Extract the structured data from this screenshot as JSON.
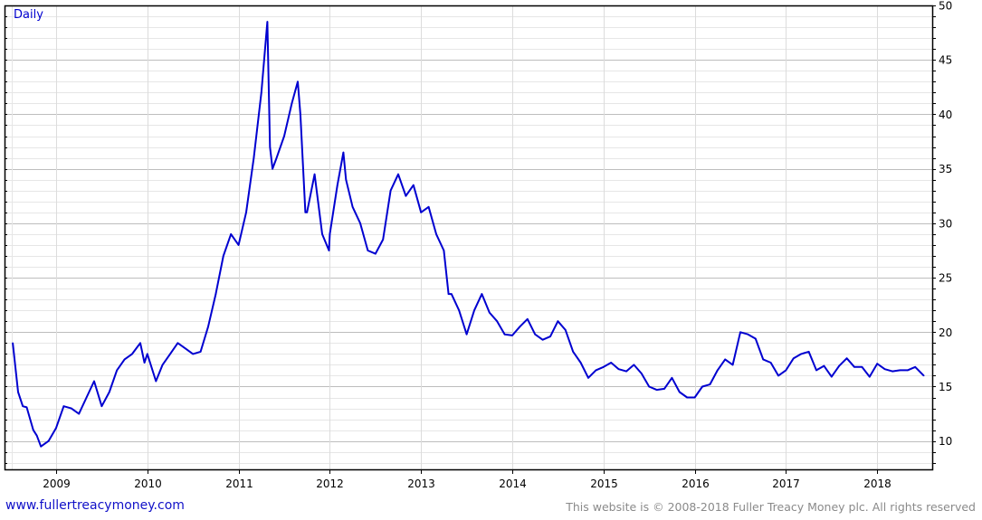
{
  "chart_data": {
    "type": "line",
    "title": "Daily",
    "xlabel": "",
    "ylabel": "",
    "ylim": [
      7.4,
      50
    ],
    "yticks": [
      10,
      15,
      20,
      25,
      30,
      35,
      40,
      45,
      50
    ],
    "xticks": [
      "2009",
      "2010",
      "2011",
      "2012",
      "2013",
      "2014",
      "2015",
      "2016",
      "2017",
      "2018"
    ],
    "grid": true,
    "y_axis_side": "right",
    "colors": {
      "series": "#0000d0",
      "title": "#0000d0",
      "major_grid": "#bdbdbd",
      "minor_grid": "#e6e6e6"
    },
    "series": [
      {
        "points": [
          [
            "2008-07-10",
            19.0
          ],
          [
            "2008-08-01",
            14.5
          ],
          [
            "2008-08-20",
            13.2
          ],
          [
            "2008-09-05",
            13.1
          ],
          [
            "2008-10-01",
            11.0
          ],
          [
            "2008-10-15",
            10.5
          ],
          [
            "2008-11-01",
            9.5
          ],
          [
            "2008-12-01",
            10.0
          ],
          [
            "2009-01-01",
            11.2
          ],
          [
            "2009-02-01",
            13.2
          ],
          [
            "2009-03-01",
            13.0
          ],
          [
            "2009-04-01",
            12.5
          ],
          [
            "2009-05-01",
            14.0
          ],
          [
            "2009-06-01",
            15.5
          ],
          [
            "2009-07-01",
            13.2
          ],
          [
            "2009-08-01",
            14.5
          ],
          [
            "2009-09-01",
            16.5
          ],
          [
            "2009-10-01",
            17.5
          ],
          [
            "2009-11-01",
            18.0
          ],
          [
            "2009-12-03",
            19.0
          ],
          [
            "2009-12-20",
            17.2
          ],
          [
            "2010-01-01",
            18.0
          ],
          [
            "2010-02-05",
            15.5
          ],
          [
            "2010-03-01",
            17.0
          ],
          [
            "2010-04-01",
            18.0
          ],
          [
            "2010-05-01",
            19.0
          ],
          [
            "2010-06-01",
            18.5
          ],
          [
            "2010-07-01",
            18.0
          ],
          [
            "2010-08-01",
            18.2
          ],
          [
            "2010-09-01",
            20.5
          ],
          [
            "2010-10-01",
            23.5
          ],
          [
            "2010-11-01",
            27.0
          ],
          [
            "2010-12-01",
            29.0
          ],
          [
            "2011-01-01",
            28.0
          ],
          [
            "2011-02-01",
            31.0
          ],
          [
            "2011-03-01",
            36.0
          ],
          [
            "2011-04-01",
            42.0
          ],
          [
            "2011-04-25",
            48.5
          ],
          [
            "2011-05-05",
            37.0
          ],
          [
            "2011-05-15",
            35.0
          ],
          [
            "2011-06-01",
            36.0
          ],
          [
            "2011-07-01",
            38.0
          ],
          [
            "2011-08-01",
            41.0
          ],
          [
            "2011-08-25",
            43.0
          ],
          [
            "2011-09-05",
            40.0
          ],
          [
            "2011-09-25",
            31.0
          ],
          [
            "2011-10-01",
            31.0
          ],
          [
            "2011-11-01",
            34.5
          ],
          [
            "2011-12-01",
            29.0
          ],
          [
            "2011-12-28",
            27.5
          ],
          [
            "2012-01-01",
            29.0
          ],
          [
            "2012-02-01",
            33.5
          ],
          [
            "2012-02-25",
            36.5
          ],
          [
            "2012-03-05",
            34.0
          ],
          [
            "2012-04-01",
            31.5
          ],
          [
            "2012-05-01",
            30.0
          ],
          [
            "2012-06-01",
            27.5
          ],
          [
            "2012-07-01",
            27.2
          ],
          [
            "2012-08-01",
            28.5
          ],
          [
            "2012-09-01",
            33.0
          ],
          [
            "2012-10-01",
            34.5
          ],
          [
            "2012-11-01",
            32.5
          ],
          [
            "2012-12-01",
            33.5
          ],
          [
            "2013-01-01",
            31.0
          ],
          [
            "2013-02-01",
            31.5
          ],
          [
            "2013-03-01",
            29.0
          ],
          [
            "2013-04-01",
            27.5
          ],
          [
            "2013-04-20",
            23.5
          ],
          [
            "2013-05-01",
            23.5
          ],
          [
            "2013-06-01",
            22.0
          ],
          [
            "2013-07-01",
            19.8
          ],
          [
            "2013-08-01",
            22.0
          ],
          [
            "2013-09-01",
            23.5
          ],
          [
            "2013-10-01",
            21.8
          ],
          [
            "2013-11-01",
            21.0
          ],
          [
            "2013-12-01",
            19.8
          ],
          [
            "2014-01-01",
            19.7
          ],
          [
            "2014-02-01",
            20.5
          ],
          [
            "2014-03-01",
            21.2
          ],
          [
            "2014-04-01",
            19.8
          ],
          [
            "2014-05-01",
            19.3
          ],
          [
            "2014-06-01",
            19.6
          ],
          [
            "2014-07-01",
            21.0
          ],
          [
            "2014-08-01",
            20.2
          ],
          [
            "2014-09-01",
            18.2
          ],
          [
            "2014-10-01",
            17.2
          ],
          [
            "2014-11-01",
            15.8
          ],
          [
            "2014-12-01",
            16.5
          ],
          [
            "2015-01-01",
            16.8
          ],
          [
            "2015-02-01",
            17.2
          ],
          [
            "2015-03-01",
            16.6
          ],
          [
            "2015-04-01",
            16.4
          ],
          [
            "2015-05-01",
            17.0
          ],
          [
            "2015-06-01",
            16.2
          ],
          [
            "2015-07-01",
            15.0
          ],
          [
            "2015-08-01",
            14.7
          ],
          [
            "2015-09-01",
            14.8
          ],
          [
            "2015-10-01",
            15.8
          ],
          [
            "2015-11-01",
            14.5
          ],
          [
            "2015-12-01",
            14.0
          ],
          [
            "2016-01-01",
            14.0
          ],
          [
            "2016-02-01",
            15.0
          ],
          [
            "2016-03-01",
            15.2
          ],
          [
            "2016-04-01",
            16.5
          ],
          [
            "2016-05-01",
            17.5
          ],
          [
            "2016-06-01",
            17.0
          ],
          [
            "2016-07-01",
            20.0
          ],
          [
            "2016-08-01",
            19.8
          ],
          [
            "2016-09-01",
            19.4
          ],
          [
            "2016-10-01",
            17.5
          ],
          [
            "2016-11-01",
            17.2
          ],
          [
            "2016-12-01",
            16.0
          ],
          [
            "2017-01-01",
            16.5
          ],
          [
            "2017-02-01",
            17.6
          ],
          [
            "2017-03-01",
            18.0
          ],
          [
            "2017-04-01",
            18.2
          ],
          [
            "2017-05-01",
            16.5
          ],
          [
            "2017-06-01",
            16.9
          ],
          [
            "2017-07-01",
            15.9
          ],
          [
            "2017-08-01",
            16.9
          ],
          [
            "2017-09-01",
            17.6
          ],
          [
            "2017-10-01",
            16.8
          ],
          [
            "2017-11-01",
            16.8
          ],
          [
            "2017-12-01",
            15.9
          ],
          [
            "2018-01-01",
            17.1
          ],
          [
            "2018-02-01",
            16.6
          ],
          [
            "2018-03-01",
            16.4
          ],
          [
            "2018-04-01",
            16.5
          ],
          [
            "2018-05-01",
            16.5
          ],
          [
            "2018-06-01",
            16.8
          ],
          [
            "2018-07-05",
            16.0
          ]
        ]
      }
    ]
  },
  "footer": {
    "site_link": "www.fullertreacymoney.com",
    "copyright": "This website is © 2008-2018 Fuller Treacy Money plc. All rights reserved"
  }
}
